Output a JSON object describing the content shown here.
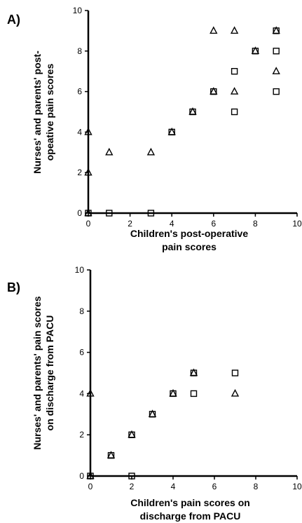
{
  "chart_data": [
    {
      "type": "scatter",
      "panel": "A)",
      "xlabel": [
        "Children's post-operative",
        "pain scores"
      ],
      "ylabel": [
        "Nurses' and parents' post-",
        "opeative pain scores"
      ],
      "xlim": [
        0,
        10
      ],
      "ylim": [
        0,
        10
      ],
      "xticks": [
        "0",
        "2",
        "4",
        "6",
        "8",
        "10"
      ],
      "yticks": [
        "0",
        "2",
        "4",
        "6",
        "8",
        "10"
      ],
      "series": [
        {
          "marker": "square-open",
          "points": [
            [
              0,
              0
            ],
            [
              1,
              0
            ],
            [
              3,
              0
            ],
            [
              4,
              4
            ],
            [
              5,
              5
            ],
            [
              6,
              6
            ],
            [
              7,
              5
            ],
            [
              7,
              7
            ],
            [
              8,
              8
            ],
            [
              9,
              6
            ],
            [
              9,
              8
            ],
            [
              9,
              9
            ]
          ]
        },
        {
          "marker": "triangle-open",
          "points": [
            [
              0,
              0
            ],
            [
              0,
              2
            ],
            [
              0,
              4
            ],
            [
              1,
              3
            ],
            [
              3,
              3
            ],
            [
              4,
              4
            ],
            [
              5,
              5
            ],
            [
              6,
              6
            ],
            [
              6,
              9
            ],
            [
              7,
              6
            ],
            [
              7,
              9
            ],
            [
              8,
              8
            ],
            [
              9,
              7
            ],
            [
              9,
              9
            ]
          ]
        }
      ]
    },
    {
      "type": "scatter",
      "panel": "B)",
      "xlabel": [
        "Children's pain scores on",
        "discharge from PACU"
      ],
      "ylabel": [
        "Nurses' and parents' pain scores",
        "on discharge from PACU"
      ],
      "xlim": [
        0,
        10
      ],
      "ylim": [
        0,
        10
      ],
      "xticks": [
        "0",
        "2",
        "4",
        "6",
        "8",
        "10"
      ],
      "yticks": [
        "0",
        "2",
        "4",
        "6",
        "8",
        "10"
      ],
      "series": [
        {
          "marker": "square-open",
          "points": [
            [
              0,
              0
            ],
            [
              1,
              1
            ],
            [
              2,
              0
            ],
            [
              2,
              2
            ],
            [
              3,
              3
            ],
            [
              4,
              4
            ],
            [
              5,
              4
            ],
            [
              5,
              5
            ],
            [
              7,
              5
            ]
          ]
        },
        {
          "marker": "triangle-open",
          "points": [
            [
              0,
              0
            ],
            [
              0,
              4
            ],
            [
              1,
              1
            ],
            [
              2,
              2
            ],
            [
              3,
              3
            ],
            [
              4,
              4
            ],
            [
              5,
              5
            ],
            [
              7,
              4
            ]
          ]
        }
      ]
    }
  ]
}
